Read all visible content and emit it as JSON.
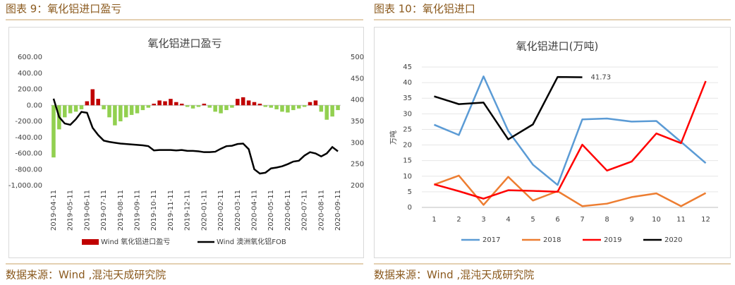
{
  "figures": [
    {
      "caption": "图表 9：氧化铝进口盈亏",
      "source": "数据来源：Wind ,混沌天成研究院"
    },
    {
      "caption": "图表 10：氧化铝进口",
      "source": "数据来源：Wind ,混沌天成研究院"
    }
  ],
  "chart_data": [
    {
      "type": "combo",
      "title": "氧化铝进口盈亏",
      "categories": [
        "2019-04-11",
        null,
        null,
        "2019-05-11",
        null,
        null,
        "2019-06-11",
        null,
        null,
        "2019-07-11",
        null,
        null,
        "2019-08-11",
        null,
        null,
        "2019-09-11",
        null,
        null,
        "2019-10-11",
        null,
        null,
        "2019-11-11",
        null,
        null,
        "2019-12-11",
        null,
        null,
        "2020-01-11",
        null,
        null,
        "2020-02-11",
        null,
        null,
        "2020-03-11",
        null,
        null,
        "2020-04-11",
        null,
        null,
        "2020-05-11",
        null,
        null,
        "2020-06-11",
        null,
        null,
        "2020-07-11",
        null,
        null,
        "2020-08-11",
        null,
        null,
        "2020-09-11"
      ],
      "series": [
        {
          "name": "Wind 氧化铝进口盈亏",
          "kind": "bar",
          "color": "#c00000",
          "negative_color": "#92d050",
          "values": [
            -650,
            -300,
            -150,
            -100,
            -80,
            -50,
            50,
            200,
            80,
            -50,
            -150,
            -250,
            -200,
            -150,
            -120,
            -100,
            -60,
            -30,
            20,
            60,
            50,
            80,
            40,
            20,
            -20,
            -40,
            -20,
            20,
            -30,
            -80,
            -100,
            -60,
            -30,
            80,
            100,
            60,
            40,
            20,
            -20,
            -30,
            -50,
            -80,
            -90,
            -60,
            -40,
            -20,
            40,
            60,
            -80,
            -180,
            -140,
            -60
          ]
        },
        {
          "name": "Wind 澳洲氧化铝FOB",
          "kind": "line",
          "axis": "y2",
          "color": "#000000",
          "values": [
            403,
            360,
            345,
            342,
            355,
            372,
            370,
            335,
            318,
            305,
            302,
            300,
            298,
            297,
            296,
            295,
            294,
            292,
            282,
            283,
            283,
            283,
            282,
            283,
            281,
            281,
            280,
            278,
            278,
            279,
            286,
            292,
            293,
            297,
            298,
            285,
            238,
            228,
            230,
            240,
            242,
            245,
            250,
            256,
            258,
            270,
            278,
            275,
            268,
            275,
            290,
            280
          ]
        }
      ],
      "ylim": [
        -1000,
        600
      ],
      "yticks": [
        {
          "value": -1000,
          "label": "-1,000.00"
        },
        {
          "value": -800,
          "label": "-800.00"
        },
        {
          "value": -600,
          "label": "-600.00"
        },
        {
          "value": -400,
          "label": "-400.00"
        },
        {
          "value": -200,
          "label": "-200.00"
        },
        {
          "value": 0,
          "label": "0.00"
        },
        {
          "value": 200,
          "label": "200.00"
        },
        {
          "value": 400,
          "label": "400.00"
        },
        {
          "value": 600,
          "label": "600.00"
        }
      ],
      "y2lim": [
        200,
        500
      ],
      "y2ticks": [
        200,
        250,
        300,
        350,
        400,
        450,
        500
      ]
    },
    {
      "type": "line",
      "title": "氧化铝进口(万吨)",
      "ylabel": "万吨",
      "categories": [
        1,
        2,
        3,
        4,
        5,
        6,
        7,
        8,
        9,
        10,
        11,
        12
      ],
      "series": [
        {
          "name": "2017",
          "color": "#5b9bd5",
          "values": [
            26.5,
            23.2,
            42,
            24.5,
            13.7,
            7.2,
            28.2,
            28.5,
            27.5,
            27.7,
            21,
            14.2
          ]
        },
        {
          "name": "2018",
          "color": "#ed7d31",
          "values": [
            7.3,
            10.2,
            0.8,
            9.8,
            2.2,
            5.2,
            0.4,
            1.2,
            3.3,
            4.5,
            0.4,
            4.6
          ]
        },
        {
          "name": "2019",
          "color": "#ff0000",
          "values": [
            7.4,
            5.2,
            2.8,
            5.5,
            5.3,
            5.0,
            20.1,
            11.8,
            14.7,
            23.7,
            20.6,
            40.5
          ]
        },
        {
          "name": "2020",
          "color": "#000000",
          "values": [
            35.6,
            33.1,
            33.6,
            21.8,
            26.6,
            41.8,
            41.73,
            null,
            null,
            null,
            null,
            null
          ]
        }
      ],
      "labeled_point": {
        "series": 3,
        "index": 6
      },
      "ylim": [
        0,
        45
      ],
      "yticks": [
        0,
        5,
        10,
        15,
        20,
        25,
        30,
        35,
        40,
        45
      ],
      "grid": true
    }
  ]
}
